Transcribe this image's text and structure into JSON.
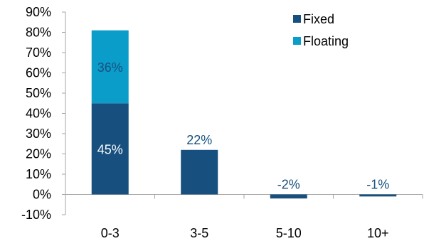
{
  "chart_data": {
    "type": "bar",
    "stacked": true,
    "categories": [
      "0-3",
      "3-5",
      "5-10",
      "10+"
    ],
    "series": [
      {
        "name": "Fixed",
        "color": "#17507f",
        "values": [
          45,
          22,
          -2,
          -1
        ],
        "labels": [
          "45%",
          "22%",
          "-2%",
          "-1%"
        ],
        "label_colors": [
          "#ffffff",
          "#17507f",
          "#17507f",
          "#17507f"
        ],
        "label_positions": [
          "inside",
          "above",
          "above",
          "above"
        ]
      },
      {
        "name": "Floating",
        "color": "#0b9dc9",
        "values": [
          36,
          0,
          0,
          0
        ],
        "labels": [
          "36%",
          "",
          "",
          ""
        ],
        "label_colors": [
          "#17507f",
          "#17507f",
          "#17507f",
          "#17507f"
        ],
        "label_positions": [
          "inside",
          "inside",
          "inside",
          "inside"
        ]
      }
    ],
    "ylim": [
      -10,
      90
    ],
    "yticks": [
      -10,
      0,
      10,
      20,
      30,
      40,
      50,
      60,
      70,
      80,
      90
    ],
    "ytick_labels": [
      "-10%",
      "0%",
      "10%",
      "20%",
      "30%",
      "40%",
      "50%",
      "60%",
      "70%",
      "80%",
      "90%"
    ],
    "grid": false,
    "legend_position": "top-right",
    "title": "",
    "xlabel": "",
    "ylabel": ""
  }
}
